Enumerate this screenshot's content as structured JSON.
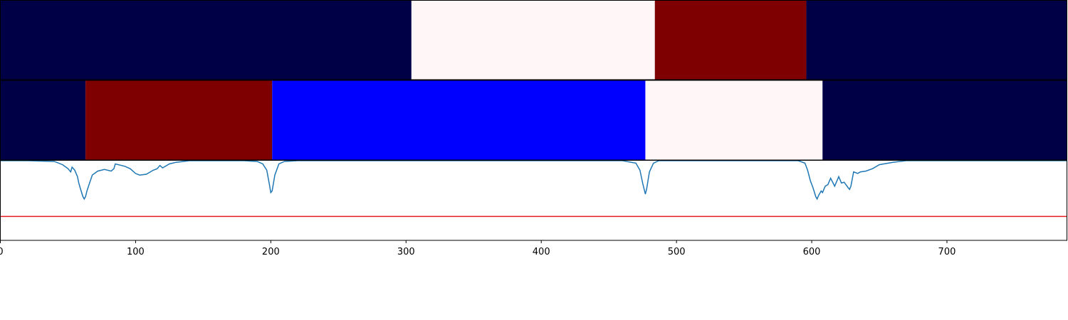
{
  "chart_data": {
    "type": "segmentation",
    "xlim": [
      0,
      789
    ],
    "x_ticks": [
      0,
      100,
      200,
      300,
      400,
      500,
      600,
      700
    ],
    "x_tick_labels": [
      "0",
      "100",
      "200",
      "300",
      "400",
      "500",
      "600",
      "700"
    ],
    "panels": [
      {
        "type": "segment_bar",
        "segments": [
          {
            "start": 0,
            "end": 304,
            "color": "#000047"
          },
          {
            "start": 304,
            "end": 484,
            "color": "#fff7f7"
          },
          {
            "start": 484,
            "end": 596,
            "color": "#7f0000"
          },
          {
            "start": 596,
            "end": 789,
            "color": "#000047"
          }
        ]
      },
      {
        "type": "segment_bar",
        "segments": [
          {
            "start": 0,
            "end": 63,
            "color": "#000047"
          },
          {
            "start": 63,
            "end": 201,
            "color": "#7f0000"
          },
          {
            "start": 201,
            "end": 477,
            "color": "#0000ff"
          },
          {
            "start": 477,
            "end": 608,
            "color": "#fff7f7"
          },
          {
            "start": 608,
            "end": 789,
            "color": "#000047"
          }
        ]
      },
      {
        "type": "line",
        "ylim": [
          0,
          1
        ],
        "threshold": {
          "y": 0.3,
          "color": "#e41a1c"
        },
        "line_color": "#1f77b4",
        "series": {
          "x": [
            0,
            20,
            40,
            46,
            50,
            52,
            53,
            55,
            57,
            58,
            59,
            61,
            62,
            63,
            64,
            66,
            68,
            72,
            77,
            82,
            84,
            85,
            92,
            96,
            100,
            103,
            108,
            113,
            116,
            118,
            120,
            125,
            130,
            140,
            160,
            180,
            190,
            194,
            197,
            199,
            200,
            201,
            203,
            206,
            210,
            220,
            300,
            400,
            460,
            470,
            473,
            475,
            477,
            478,
            480,
            483,
            487,
            495,
            520,
            590,
            595,
            597,
            599,
            601,
            603,
            604,
            605,
            607,
            608,
            610,
            612,
            614,
            617,
            620,
            622,
            624,
            627,
            628,
            629,
            631,
            634,
            636,
            640,
            645,
            650,
            660,
            670,
            700,
            789
          ],
          "y": [
            1.0,
            1.0,
            0.99,
            0.95,
            0.9,
            0.86,
            0.92,
            0.88,
            0.8,
            0.72,
            0.66,
            0.55,
            0.52,
            0.55,
            0.62,
            0.72,
            0.82,
            0.87,
            0.89,
            0.87,
            0.9,
            0.96,
            0.93,
            0.9,
            0.84,
            0.82,
            0.83,
            0.88,
            0.9,
            0.94,
            0.91,
            0.96,
            0.98,
            1.0,
            1.0,
            1.0,
            0.99,
            0.96,
            0.88,
            0.7,
            0.6,
            0.62,
            0.82,
            0.96,
            0.99,
            1.0,
            1.0,
            1.0,
            1.0,
            0.97,
            0.88,
            0.72,
            0.58,
            0.65,
            0.86,
            0.97,
            1.0,
            1.0,
            1.0,
            1.0,
            0.97,
            0.88,
            0.75,
            0.66,
            0.55,
            0.52,
            0.56,
            0.62,
            0.6,
            0.68,
            0.7,
            0.78,
            0.68,
            0.8,
            0.72,
            0.73,
            0.66,
            0.64,
            0.68,
            0.86,
            0.84,
            0.86,
            0.87,
            0.9,
            0.95,
            0.98,
            1.0,
            1.0,
            1.0
          ]
        }
      }
    ]
  }
}
